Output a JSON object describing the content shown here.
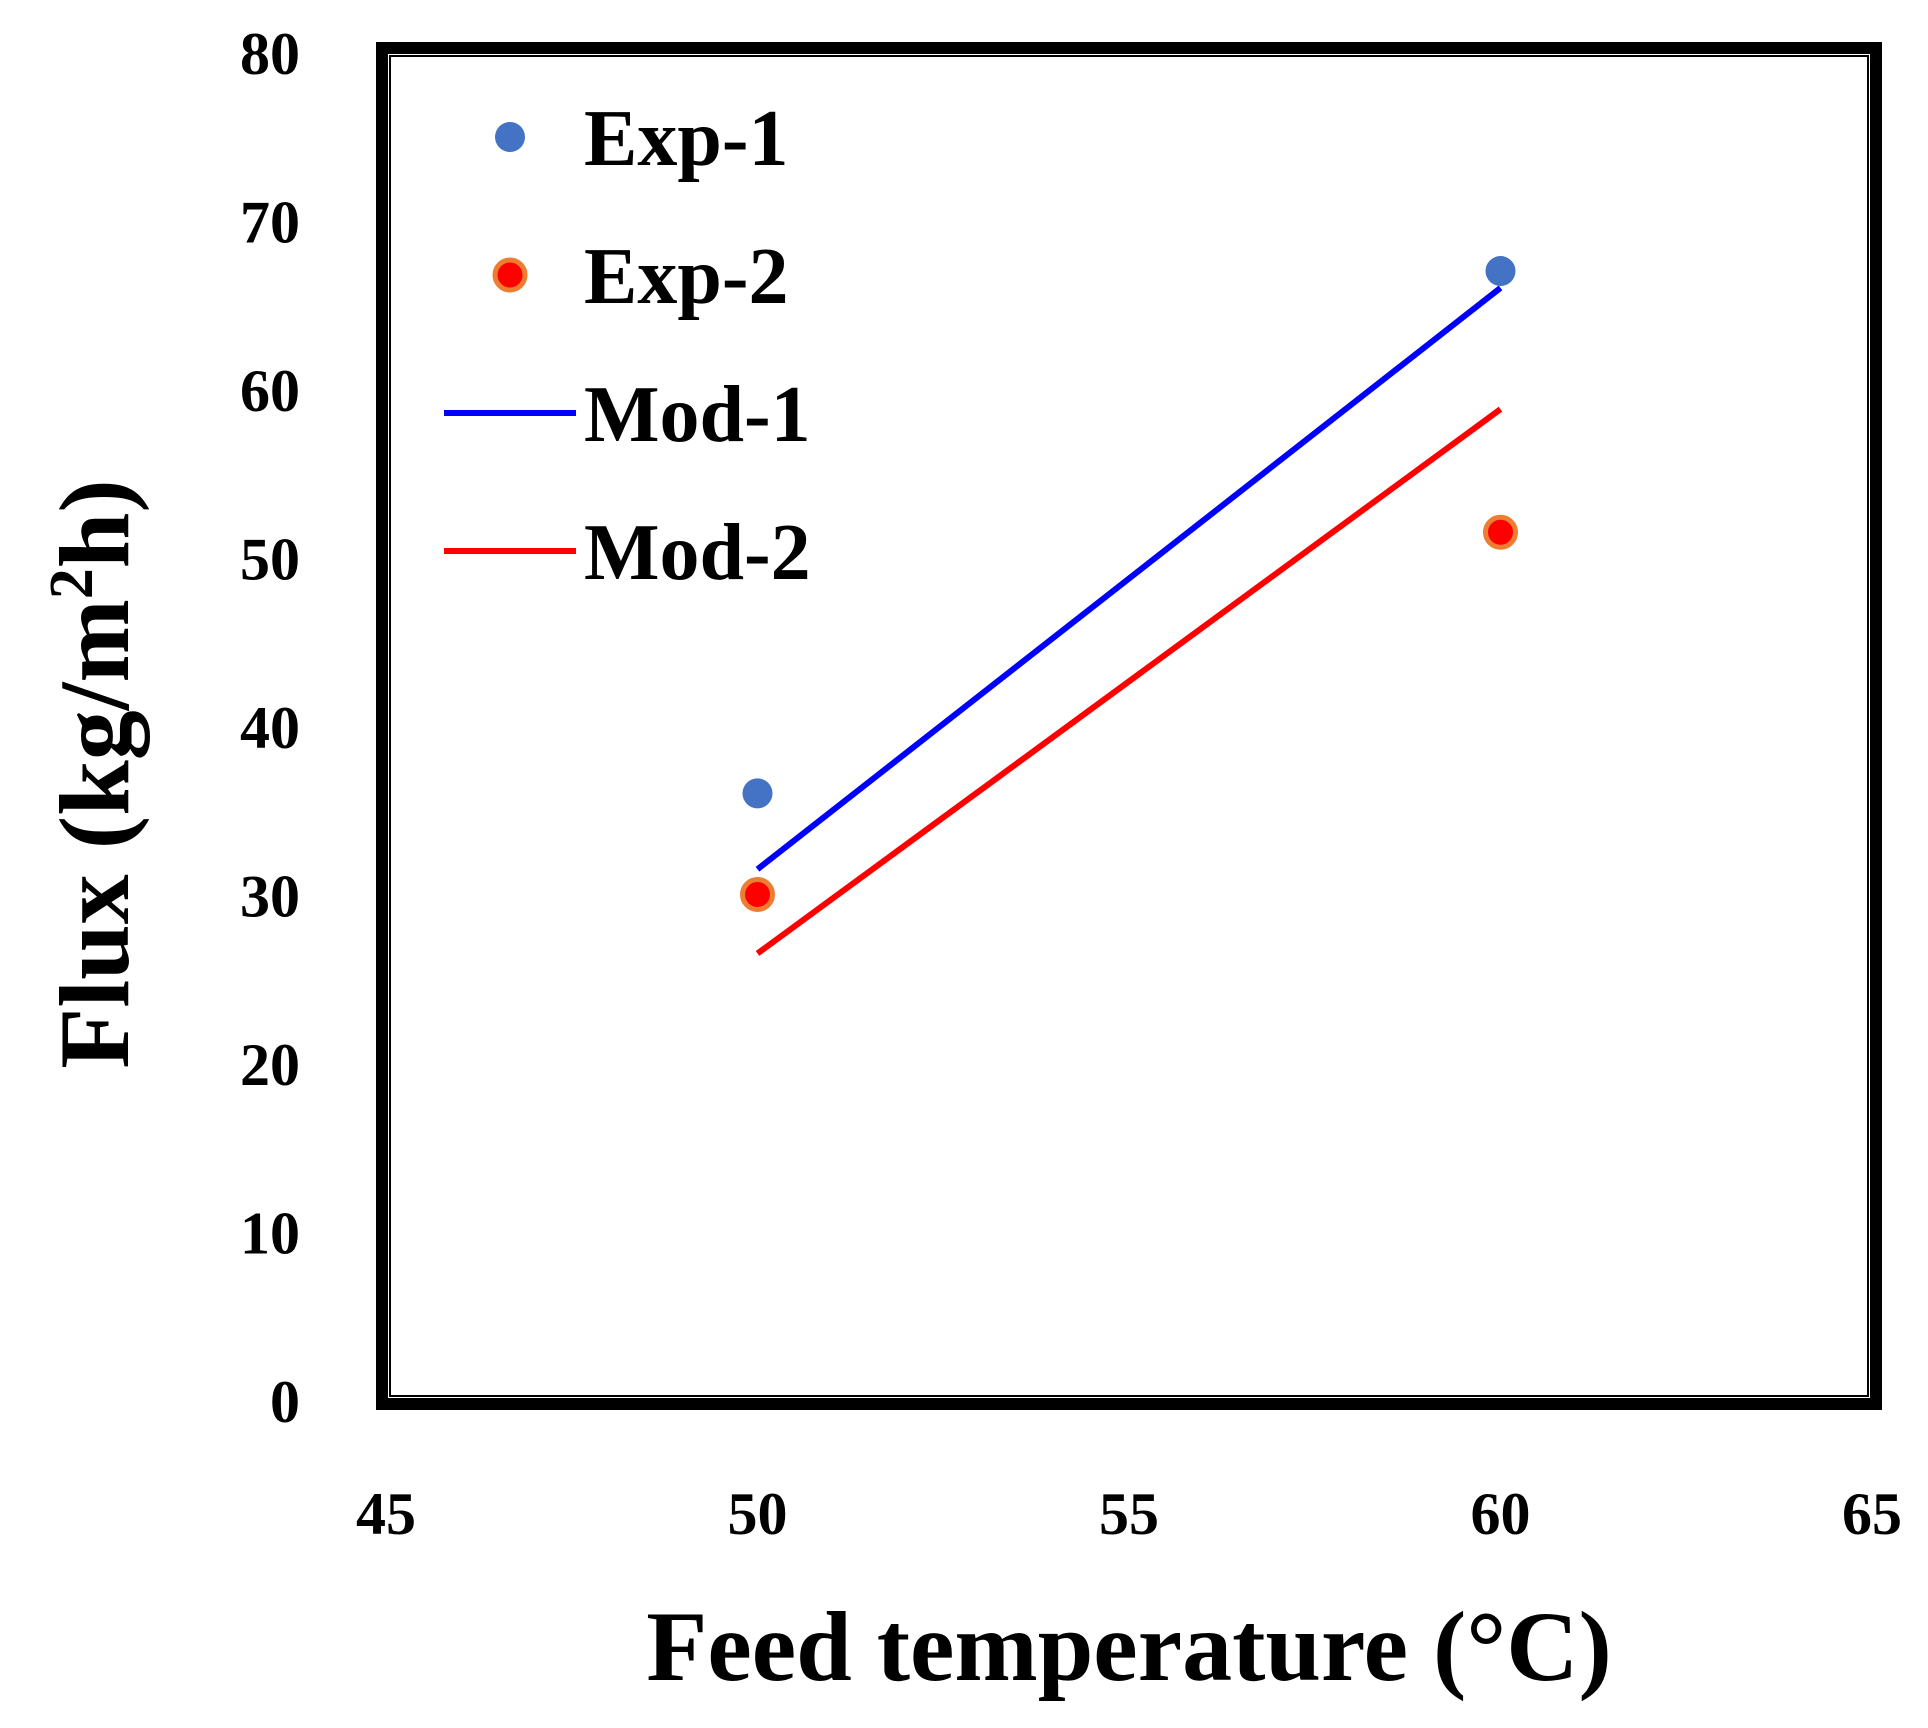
{
  "chart_data": {
    "type": "scatter",
    "xlabel": "Feed temperature (°C)",
    "ylabel_main": "Flux (kg/m",
    "ylabel_sup": "2",
    "ylabel_tail": "h)",
    "xlim": [
      45,
      65
    ],
    "ylim": [
      0,
      80
    ],
    "xticks": [
      45,
      50,
      55,
      60,
      65
    ],
    "yticks": [
      0,
      10,
      20,
      30,
      40,
      50,
      60,
      70,
      80
    ],
    "grid": false,
    "legend_position": "top-left",
    "series": [
      {
        "name": "Exp-1",
        "kind": "marker",
        "color": "#4472C4",
        "points": [
          [
            50,
            36.0
          ],
          [
            60,
            67.0
          ]
        ]
      },
      {
        "name": "Exp-2",
        "kind": "marker",
        "color": "#FF0000",
        "edge_color": "#ED7D31",
        "points": [
          [
            50,
            30.0
          ],
          [
            60,
            51.5
          ]
        ]
      },
      {
        "name": "Mod-1",
        "kind": "line",
        "color": "#0000FF",
        "points": [
          [
            50,
            31.5
          ],
          [
            60,
            66.0
          ]
        ]
      },
      {
        "name": "Mod-2",
        "kind": "line",
        "color": "#FF0000",
        "points": [
          [
            50,
            26.5
          ],
          [
            60,
            58.8
          ]
        ]
      }
    ]
  }
}
